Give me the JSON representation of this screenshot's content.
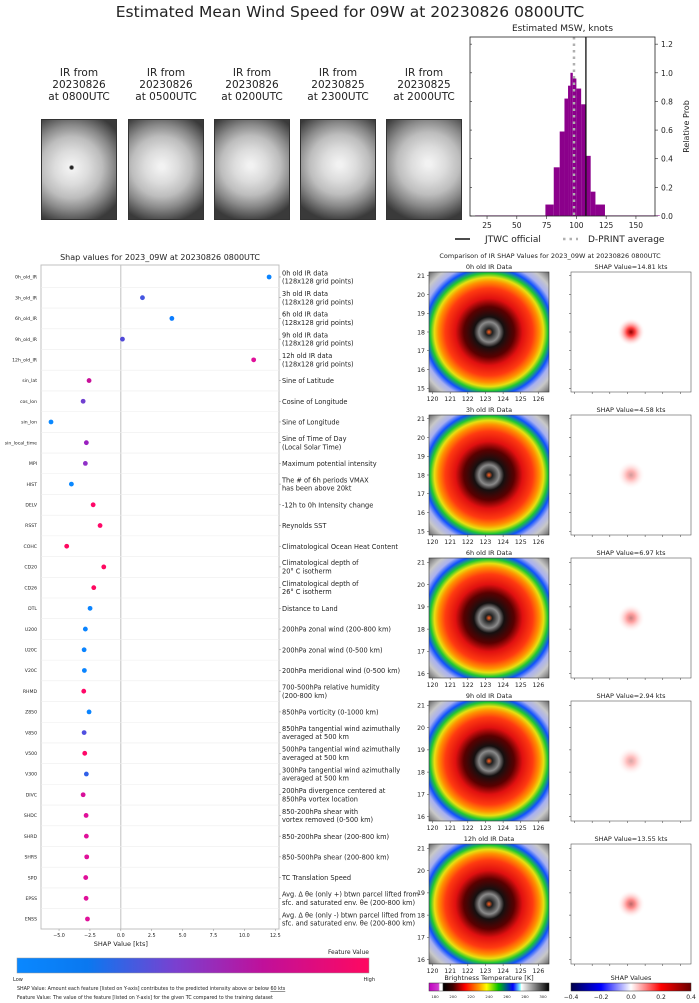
{
  "title": "Estimated Mean Wind Speed for 09W at 20230826 0800UTC",
  "ir_thumbnails": [
    {
      "line1": "IR from",
      "line2": "20230826",
      "line3": "at 0800UTC"
    },
    {
      "line1": "IR from",
      "line2": "20230826",
      "line3": "at 0500UTC"
    },
    {
      "line1": "IR from",
      "line2": "20230826",
      "line3": "at 0200UTC"
    },
    {
      "line1": "IR from",
      "line2": "20230825",
      "line3": "at 2300UTC"
    },
    {
      "line1": "IR from",
      "line2": "20230825",
      "line3": "at 2000UTC"
    }
  ],
  "chart_data": [
    {
      "type": "bar",
      "title": "Estimated MSW, knots",
      "ylabel": "Relative Prob",
      "xlim": [
        10.7,
        166
      ],
      "ylim": [
        0,
        1.25
      ],
      "xticks": [
        25,
        50,
        75,
        100,
        125,
        150
      ],
      "yticks": [
        0.0,
        0.2,
        0.4,
        0.6,
        0.8,
        1.0,
        1.2
      ],
      "bar_color": "#8b008b",
      "bins": [
        {
          "from": 15,
          "to": 74,
          "value": 0.004
        },
        {
          "from": 74,
          "to": 81,
          "value": 0.08
        },
        {
          "from": 81,
          "to": 86,
          "value": 0.34
        },
        {
          "from": 86,
          "to": 90,
          "value": 0.59
        },
        {
          "from": 90,
          "to": 93,
          "value": 0.82
        },
        {
          "from": 93,
          "to": 95,
          "value": 0.91
        },
        {
          "from": 95,
          "to": 97,
          "value": 1.0
        },
        {
          "from": 97,
          "to": 100,
          "value": 0.96
        },
        {
          "from": 100,
          "to": 104,
          "value": 0.89
        },
        {
          "from": 104,
          "to": 108,
          "value": 0.78
        },
        {
          "from": 108,
          "to": 112,
          "value": 0.42
        },
        {
          "from": 112,
          "to": 116,
          "value": 0.17
        },
        {
          "from": 116,
          "to": 124,
          "value": 0.08
        },
        {
          "from": 124,
          "to": 170,
          "value": 0.004
        }
      ],
      "jtwc_official": 108,
      "dprint_average": 98,
      "legend": {
        "jtwc": "JTWC official",
        "dprint": "D-PRINT average"
      }
    },
    {
      "type": "scatter",
      "title": "Shap values for 2023_09W at 20230826 0800UTC",
      "xlabel": "SHAP Value [kts]",
      "xlim": [
        -6.46,
        12.8
      ],
      "xticks": [
        -5.0,
        -2.5,
        0.0,
        2.5,
        5.0,
        7.5,
        10.0,
        12.5
      ],
      "features": [
        {
          "name": "0h_old_IR",
          "desc": [
            "0h old IR data",
            "(128x128 grid points)"
          ],
          "value": 12.0,
          "color": "#0a84ff"
        },
        {
          "name": "3h_old_IR",
          "desc": [
            "3h old IR data",
            "(128x128 grid points)"
          ],
          "value": 1.75,
          "color": "#4455e0"
        },
        {
          "name": "6h_old_IR",
          "desc": [
            "6h old IR data",
            "(128x128 grid points)"
          ],
          "value": 4.13,
          "color": "#0a7cff"
        },
        {
          "name": "9h_old_IR",
          "desc": [
            "9h old IR data",
            "(128x128 grid points)"
          ],
          "value": 0.13,
          "color": "#5048d8"
        },
        {
          "name": "12h_old_IR",
          "desc": [
            "12h old IR data",
            "(128x128 grid points)"
          ],
          "value": 10.75,
          "color": "#e0109a"
        },
        {
          "name": "sin_lat",
          "desc": [
            "Sine of Latitude"
          ],
          "value": -2.57,
          "color": "#c8109a"
        },
        {
          "name": "cos_lon",
          "desc": [
            "Cosine of Longitude"
          ],
          "value": -3.05,
          "color": "#7040d0"
        },
        {
          "name": "sin_lon",
          "desc": [
            "Sine of Longitude"
          ],
          "value": -5.65,
          "color": "#0a88ff"
        },
        {
          "name": "sin_local_time",
          "desc": [
            "Sine of Time of Day",
            "(Local Solar Time)"
          ],
          "value": -2.79,
          "color": "#9a20c0"
        },
        {
          "name": "MPI",
          "desc": [
            "Maximum potential intensity"
          ],
          "value": -2.87,
          "color": "#9030c8"
        },
        {
          "name": "HIST",
          "desc": [
            "The # of 6h periods VMAX",
            "has been above 20kt"
          ],
          "value": -4.0,
          "color": "#0a88ff"
        },
        {
          "name": "DELV",
          "desc": [
            "-12h to 0h Intensity change"
          ],
          "value": -2.24,
          "color": "#ff0868"
        },
        {
          "name": "RSST",
          "desc": [
            "Reynolds SST"
          ],
          "value": -1.68,
          "color": "#ff0868"
        },
        {
          "name": "COHC",
          "desc": [
            "Climatological Ocean Heat Content"
          ],
          "value": -4.38,
          "color": "#ff0860"
        },
        {
          "name": "CD20",
          "desc": [
            "Climatological depth of",
            "20° C isotherm"
          ],
          "value": -1.38,
          "color": "#ff0860"
        },
        {
          "name": "CD26",
          "desc": [
            "Climatological depth of",
            "26° C isotherm"
          ],
          "value": -2.19,
          "color": "#ff0860"
        },
        {
          "name": "DTL",
          "desc": [
            "Distance to Land"
          ],
          "value": -2.49,
          "color": "#0a84ff"
        },
        {
          "name": "U200",
          "desc": [
            "200hPa zonal wind (200-800 km)"
          ],
          "value": -2.87,
          "color": "#0a84ff"
        },
        {
          "name": "U20C",
          "desc": [
            "200hPa zonal wind (0-500 km)"
          ],
          "value": -2.97,
          "color": "#0a84ff"
        },
        {
          "name": "V20C",
          "desc": [
            "200hPa meridional wind (0-500 km)"
          ],
          "value": -2.95,
          "color": "#0a84ff"
        },
        {
          "name": "RHMD",
          "desc": [
            "700-500hPa relative humidity",
            "(200-800 km)"
          ],
          "value": -3.0,
          "color": "#ff0868"
        },
        {
          "name": "Z850",
          "desc": [
            "850hPa vorticity (0-1000 km)"
          ],
          "value": -2.57,
          "color": "#0a84ff"
        },
        {
          "name": "V850",
          "desc": [
            "850hPa tangential wind azimuthally",
            "averaged at 500 km"
          ],
          "value": -2.97,
          "color": "#5050e0"
        },
        {
          "name": "V500",
          "desc": [
            "500hPa tangential wind azimuthally",
            "averaged at 500 km"
          ],
          "value": -2.92,
          "color": "#ff0868"
        },
        {
          "name": "V300",
          "desc": [
            "300hPa tangential wind azimuthally",
            "averaged at 500 km"
          ],
          "value": -2.79,
          "color": "#3060e8"
        },
        {
          "name": "DIVC",
          "desc": [
            "200hPa divergence centered at",
            "850hPa vortex location"
          ],
          "value": -3.05,
          "color": "#d8109a"
        },
        {
          "name": "SHDC",
          "desc": [
            "850-200hPa shear with",
            "vortex removed (0-500 km)"
          ],
          "value": -2.81,
          "color": "#e0109a"
        },
        {
          "name": "SHRD",
          "desc": [
            "850-200hPa shear (200-800 km)"
          ],
          "value": -2.79,
          "color": "#e0109a"
        },
        {
          "name": "SHRS",
          "desc": [
            "850-500hPa shear (200-800 km)"
          ],
          "value": -2.76,
          "color": "#e0109a"
        },
        {
          "name": "SPD",
          "desc": [
            "TC Translation Speed"
          ],
          "value": -2.84,
          "color": "#e0109a"
        },
        {
          "name": "EPSS",
          "desc": [
            "Avg. Δ θe (only +) btwn parcel lifted from",
            "sfc. and saturated env. θe (200-800 km)"
          ],
          "value": -2.81,
          "color": "#e0109a"
        },
        {
          "name": "ENSS",
          "desc": [
            "Avg. Δ θe (only -) btwn parcel lifted from",
            "sfc. and saturated env. θe (200-800 km)"
          ],
          "value": -2.7,
          "color": "#e0109a"
        }
      ],
      "colorbar": {
        "label": "Feature Value",
        "low": "Low",
        "high": "High",
        "colors": [
          "#0a88ff",
          "#0a78f0",
          "#7a40d0",
          "#c0109a",
          "#ff0860"
        ]
      }
    },
    {
      "type": "heatmap",
      "title": "Comparison of IR SHAP Values for 2023_09W at 20230826 0800UTC",
      "lon_ticks": [
        120,
        121,
        122,
        123,
        124,
        125,
        126
      ],
      "panels": [
        {
          "ir_title": "0h old IR Data",
          "shap_title": "SHAP Value=14.81 kts",
          "lat_ticks": [
            15,
            16,
            17,
            18,
            19,
            20,
            21
          ],
          "shap_intensity": 1.0
        },
        {
          "ir_title": "3h old IR Data",
          "shap_title": "SHAP Value=4.58 kts",
          "lat_ticks": [
            15,
            16,
            17,
            18,
            19,
            20,
            21
          ],
          "shap_intensity": 0.4
        },
        {
          "ir_title": "6h old IR Data",
          "shap_title": "SHAP Value=6.97 kts",
          "lat_ticks": [
            16,
            17,
            18,
            19,
            20,
            21
          ],
          "shap_intensity": 0.5
        },
        {
          "ir_title": "9h old IR Data",
          "shap_title": "SHAP Value=2.94 kts",
          "lat_ticks": [
            16,
            17,
            18,
            19,
            20,
            21
          ],
          "shap_intensity": 0.35
        },
        {
          "ir_title": "12h old IR Data",
          "shap_title": "SHAP Value=13.55 kts",
          "lat_ticks": [
            16,
            17,
            18,
            19,
            20,
            21
          ],
          "shap_intensity": 0.6
        }
      ],
      "bt_colorbar": {
        "label": "Brightness Temperature [K]",
        "ticks": [
          180,
          200,
          220,
          240,
          260,
          280,
          300
        ]
      },
      "shap_colorbar": {
        "label": "SHAP Values",
        "ticks": [
          "−0.4",
          "−0.2",
          "0.0",
          "0.2",
          "0.4"
        ]
      }
    }
  ],
  "footnotes": {
    "line1_prefix": "SHAP Value: Amount each feature [listed on Y-axis] contributes to the predicted intensity above or below ",
    "line1_link": "60 kts",
    "line2": "Feature Value: The value of the feature [listed on Y-axis] for the given TC compared to the training dataset"
  }
}
